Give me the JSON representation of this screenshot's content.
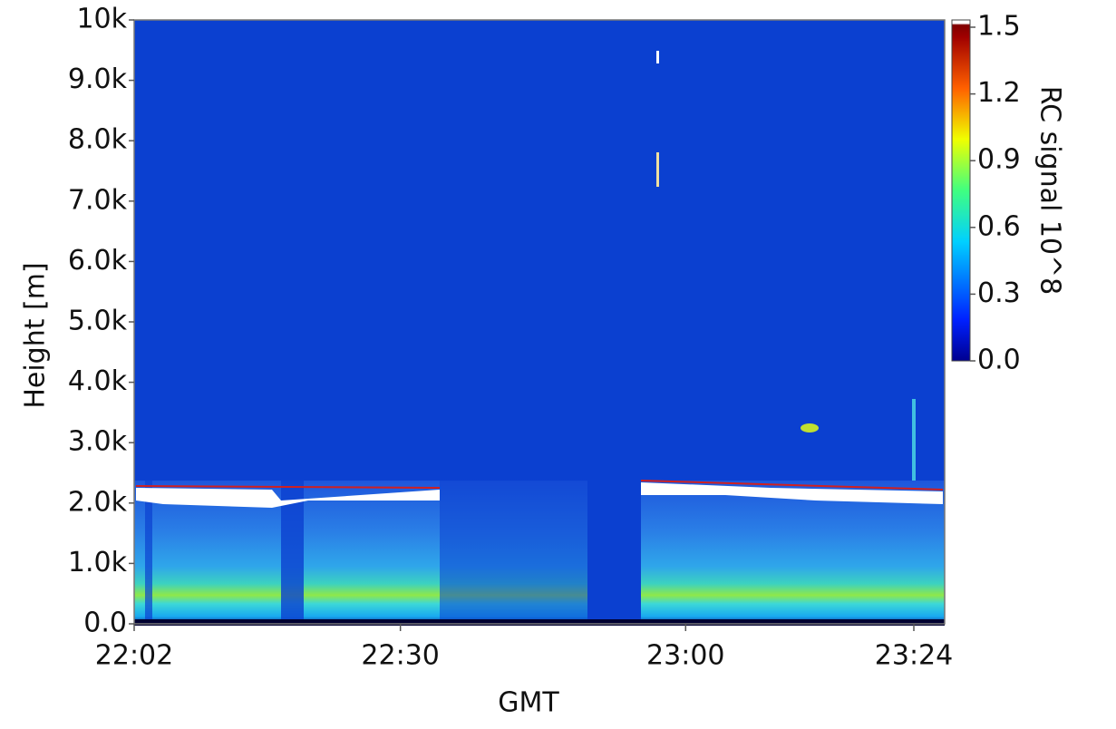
{
  "chart_data": {
    "type": "heatmap",
    "y_label": "Height [m]",
    "x_label": "GMT",
    "colorbar_label": "RC signal 10^8",
    "ylim": [
      0,
      10000
    ],
    "yticks": [
      {
        "value": 0,
        "label": "0.0"
      },
      {
        "value": 1000,
        "label": "1.0k"
      },
      {
        "value": 2000,
        "label": "2.0k"
      },
      {
        "value": 3000,
        "label": "3.0k"
      },
      {
        "value": 4000,
        "label": "4.0k"
      },
      {
        "value": 5000,
        "label": "5.0k"
      },
      {
        "value": 6000,
        "label": "6.0k"
      },
      {
        "value": 7000,
        "label": "7.0k"
      },
      {
        "value": 8000,
        "label": "8.0k"
      },
      {
        "value": 9000,
        "label": "9.0k"
      },
      {
        "value": 10000,
        "label": "10k"
      }
    ],
    "xlim": [
      "22:02",
      "23:24"
    ],
    "xticks": [
      "22:02",
      "22:30",
      "23:00",
      "23:24"
    ],
    "colorbar_lim": [
      0,
      1.5
    ],
    "colorbar_ticks": [
      {
        "value": 0,
        "label": "0.0"
      },
      0.3,
      0.6,
      0.9,
      1.2,
      1.5
    ]
  }
}
